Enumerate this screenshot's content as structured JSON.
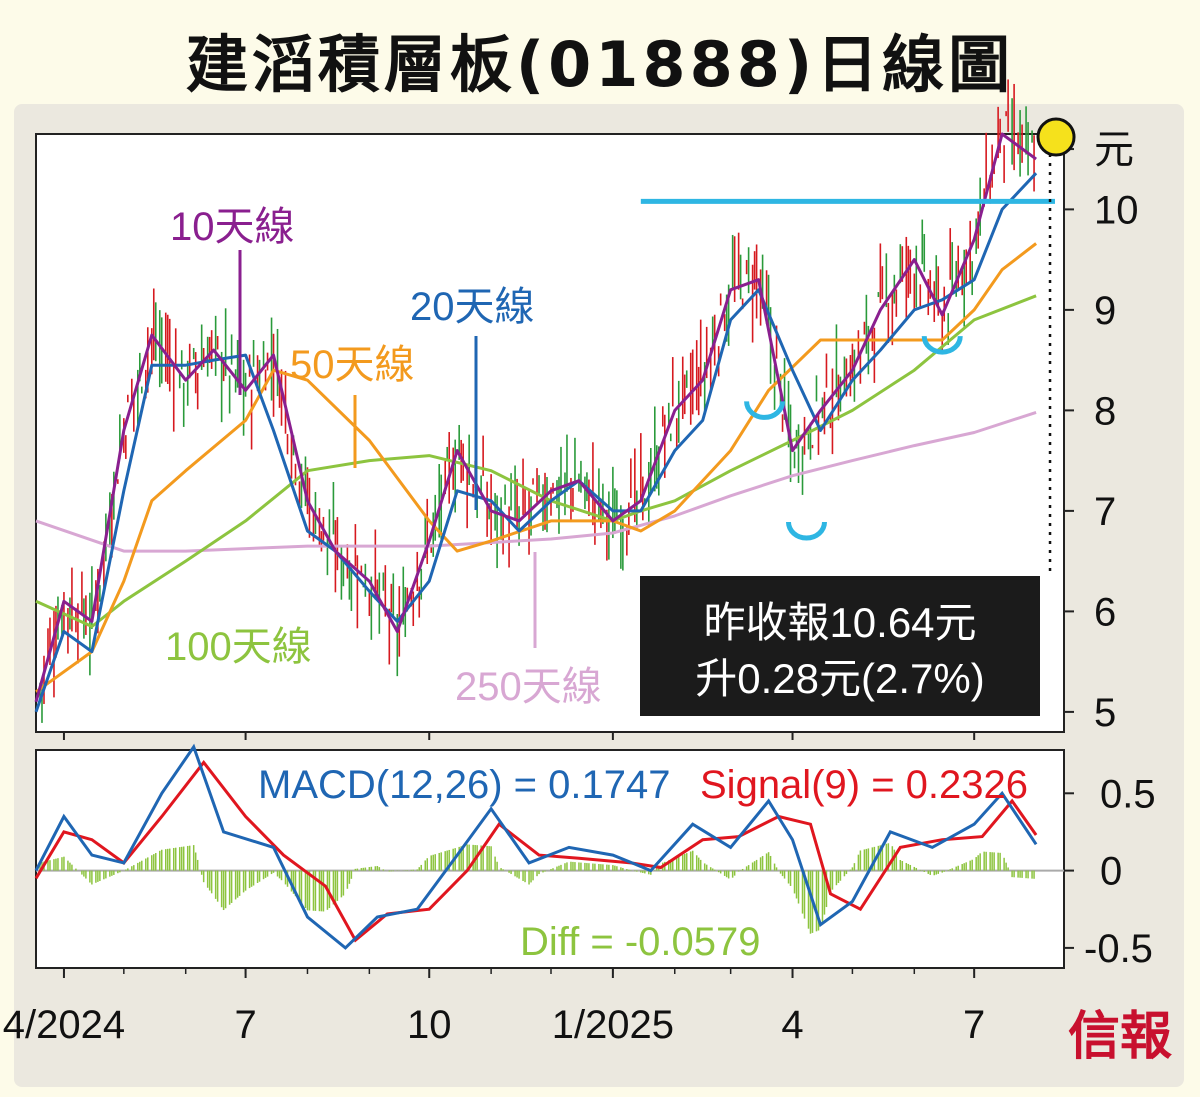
{
  "title": "建滔積層板(01888)日線圖",
  "brand": "信報",
  "colors": {
    "ma10": "#8a1f8f",
    "ma20": "#1f66b3",
    "ma50": "#f39a1e",
    "ma100": "#8dc43f",
    "ma250": "#d8a7d3",
    "resistance": "#2eb6e3",
    "macd": "#1f66b3",
    "signal": "#e0161f",
    "diff": "#8dc43f",
    "candle_up": "#2a9a3a",
    "candle_down": "#d6191f"
  },
  "chart_data": [
    {
      "type": "line",
      "panel": "price",
      "y_unit": "元",
      "ylim": [
        4.8,
        10.75
      ],
      "yticks": [
        "5",
        "6",
        "7",
        "8",
        "9",
        "10"
      ],
      "x_labels": [
        "4/2024",
        "7",
        "10",
        "1/2025",
        "4",
        "7"
      ],
      "x_label_dates": [
        "2024-04",
        "2024-07",
        "2024-10",
        "2025-01",
        "2025-04",
        "2025-07"
      ],
      "x_range": [
        "2024-03-18",
        "2025-08-15"
      ],
      "annotations": {
        "ma10": "10天線",
        "ma20": "20天線",
        "ma50": "50天線",
        "ma100": "100天線",
        "ma250": "250天線",
        "close_line1": "昨收報10.64元",
        "close_line2": "升0.28元(2.7%)"
      },
      "resistance_level": 10.08,
      "last_close": 10.64,
      "series": [
        {
          "name": "10天線",
          "x": [
            "2024-03-18",
            "2024-04-01",
            "2024-04-15",
            "2024-05-01",
            "2024-05-15",
            "2024-06-01",
            "2024-06-15",
            "2024-07-01",
            "2024-07-15",
            "2024-08-01",
            "2024-08-15",
            "2024-09-01",
            "2024-09-15",
            "2024-10-01",
            "2024-10-15",
            "2024-11-01",
            "2024-11-15",
            "2024-12-01",
            "2024-12-15",
            "2025-01-01",
            "2025-01-15",
            "2025-02-01",
            "2025-02-15",
            "2025-03-01",
            "2025-03-15",
            "2025-04-01",
            "2025-04-15",
            "2025-05-01",
            "2025-05-15",
            "2025-06-01",
            "2025-06-15",
            "2025-07-01",
            "2025-07-15",
            "2025-08-01"
          ],
          "y": [
            5.1,
            6.1,
            5.9,
            7.8,
            8.75,
            8.3,
            8.6,
            8.2,
            8.55,
            7.1,
            6.6,
            6.3,
            5.8,
            6.7,
            7.6,
            7.0,
            6.9,
            7.2,
            7.3,
            6.9,
            7.1,
            8.0,
            8.3,
            9.2,
            9.3,
            7.6,
            8.0,
            8.4,
            9.0,
            9.5,
            8.95,
            9.7,
            10.75,
            10.5
          ]
        },
        {
          "name": "20天線",
          "x": [
            "2024-03-18",
            "2024-04-01",
            "2024-04-15",
            "2024-05-01",
            "2024-05-15",
            "2024-06-01",
            "2024-06-15",
            "2024-07-01",
            "2024-07-15",
            "2024-08-01",
            "2024-08-15",
            "2024-09-01",
            "2024-09-15",
            "2024-10-01",
            "2024-10-15",
            "2024-11-01",
            "2024-11-15",
            "2024-12-01",
            "2024-12-15",
            "2025-01-01",
            "2025-01-15",
            "2025-02-01",
            "2025-02-15",
            "2025-03-01",
            "2025-03-15",
            "2025-04-01",
            "2025-04-15",
            "2025-05-01",
            "2025-05-15",
            "2025-06-01",
            "2025-06-15",
            "2025-07-01",
            "2025-07-15",
            "2025-08-01"
          ],
          "y": [
            5.0,
            5.8,
            5.6,
            7.2,
            8.45,
            8.45,
            8.5,
            8.55,
            7.8,
            6.8,
            6.6,
            6.2,
            5.9,
            6.3,
            7.2,
            7.1,
            6.8,
            7.1,
            7.3,
            7.0,
            7.0,
            7.6,
            7.9,
            8.9,
            9.2,
            8.4,
            7.8,
            8.3,
            8.6,
            9.0,
            9.1,
            9.3,
            10.0,
            10.36
          ]
        },
        {
          "name": "50天線",
          "x": [
            "2024-03-18",
            "2024-04-15",
            "2024-05-01",
            "2024-05-15",
            "2024-06-01",
            "2024-07-01",
            "2024-07-15",
            "2024-08-01",
            "2024-09-01",
            "2024-10-01",
            "2024-10-15",
            "2024-11-01",
            "2024-12-01",
            "2025-01-01",
            "2025-01-15",
            "2025-02-01",
            "2025-03-01",
            "2025-03-20",
            "2025-04-15",
            "2025-05-15",
            "2025-06-15",
            "2025-07-01",
            "2025-07-15",
            "2025-08-01"
          ],
          "y": [
            5.2,
            5.6,
            6.3,
            7.1,
            7.4,
            7.9,
            8.4,
            8.3,
            7.7,
            6.9,
            6.6,
            6.7,
            6.9,
            6.9,
            6.8,
            7.0,
            7.6,
            8.2,
            8.7,
            8.7,
            8.7,
            9.0,
            9.4,
            9.66
          ]
        },
        {
          "name": "100天線",
          "x": [
            "2024-03-18",
            "2024-04-15",
            "2024-05-01",
            "2024-06-01",
            "2024-07-01",
            "2024-08-01",
            "2024-09-01",
            "2024-10-01",
            "2024-11-01",
            "2024-12-01",
            "2025-01-01",
            "2025-01-15",
            "2025-02-01",
            "2025-03-01",
            "2025-04-01",
            "2025-05-01",
            "2025-06-01",
            "2025-07-01",
            "2025-08-01"
          ],
          "y": [
            6.1,
            5.85,
            6.1,
            6.5,
            6.9,
            7.4,
            7.5,
            7.55,
            7.4,
            7.1,
            6.9,
            7.0,
            7.1,
            7.4,
            7.7,
            8.0,
            8.4,
            8.9,
            9.14
          ]
        },
        {
          "name": "250天線",
          "x": [
            "2024-03-18",
            "2024-05-01",
            "2024-06-01",
            "2024-08-01",
            "2024-10-01",
            "2024-12-01",
            "2025-01-01",
            "2025-02-01",
            "2025-03-01",
            "2025-04-01",
            "2025-05-01",
            "2025-06-01",
            "2025-07-01",
            "2025-08-01"
          ],
          "y": [
            6.9,
            6.6,
            6.6,
            6.65,
            6.65,
            6.72,
            6.78,
            6.95,
            7.15,
            7.35,
            7.5,
            7.65,
            7.78,
            7.98
          ]
        }
      ]
    },
    {
      "type": "line",
      "panel": "macd",
      "ylim": [
        -0.63,
        0.78
      ],
      "yticks": [
        "0.5",
        "0",
        "-0.5"
      ],
      "annotations": {
        "macd_label": "MACD(12,26) = 0.1747",
        "signal_label": "Signal(9) = 0.2326",
        "diff_label": "Diff = -0.0579"
      },
      "series": [
        {
          "name": "MACD(12,26)",
          "x": [
            "2024-03-18",
            "2024-04-01",
            "2024-04-15",
            "2024-05-01",
            "2024-05-20",
            "2024-06-05",
            "2024-06-20",
            "2024-07-15",
            "2024-08-01",
            "2024-08-20",
            "2024-09-05",
            "2024-09-25",
            "2024-10-15",
            "2024-11-01",
            "2024-11-20",
            "2024-12-10",
            "2025-01-01",
            "2025-01-20",
            "2025-02-10",
            "2025-03-01",
            "2025-03-20",
            "2025-04-01",
            "2025-04-15",
            "2025-05-01",
            "2025-05-20",
            "2025-06-10",
            "2025-07-01",
            "2025-07-15",
            "2025-08-01"
          ],
          "y": [
            0.0,
            0.35,
            0.1,
            0.05,
            0.5,
            0.8,
            0.25,
            0.15,
            -0.3,
            -0.5,
            -0.3,
            -0.25,
            0.1,
            0.4,
            0.05,
            0.15,
            0.1,
            0.0,
            0.3,
            0.15,
            0.45,
            0.2,
            -0.35,
            -0.2,
            0.25,
            0.15,
            0.3,
            0.5,
            0.17
          ]
        },
        {
          "name": "Signal(9)",
          "x": [
            "2024-03-18",
            "2024-04-01",
            "2024-04-15",
            "2024-05-01",
            "2024-05-20",
            "2024-06-10",
            "2024-07-01",
            "2024-07-20",
            "2024-08-10",
            "2024-08-25",
            "2024-09-10",
            "2024-10-01",
            "2024-10-20",
            "2024-11-05",
            "2024-11-25",
            "2024-12-15",
            "2025-01-10",
            "2025-01-25",
            "2025-02-15",
            "2025-03-05",
            "2025-03-25",
            "2025-04-10",
            "2025-04-20",
            "2025-05-05",
            "2025-05-25",
            "2025-06-15",
            "2025-07-05",
            "2025-07-20",
            "2025-08-01"
          ],
          "y": [
            -0.05,
            0.25,
            0.2,
            0.05,
            0.35,
            0.7,
            0.35,
            0.1,
            -0.1,
            -0.45,
            -0.28,
            -0.25,
            0.0,
            0.3,
            0.1,
            0.08,
            0.05,
            0.02,
            0.2,
            0.22,
            0.35,
            0.3,
            -0.15,
            -0.25,
            0.15,
            0.2,
            0.22,
            0.45,
            0.23
          ]
        }
      ]
    }
  ]
}
